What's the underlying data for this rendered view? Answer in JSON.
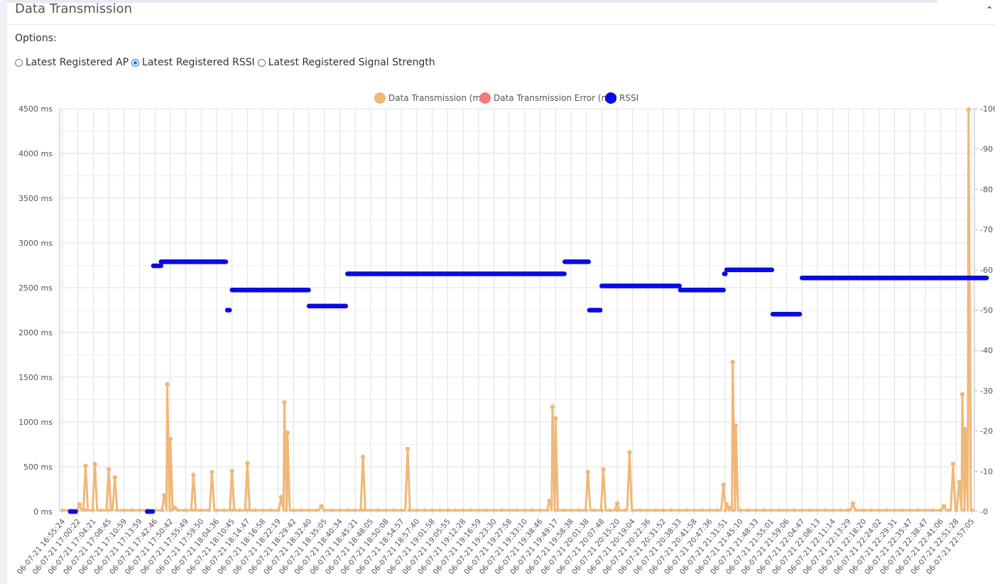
{
  "panel": {
    "title": "Data Transmission",
    "collapse_icon": "chevron-icon",
    "options_label": "Options:",
    "radios": [
      {
        "label": "Latest Registered AP",
        "checked": false
      },
      {
        "label": "Latest Registered RSSI",
        "checked": true
      },
      {
        "label": "Latest Registered Signal Strength",
        "checked": false
      }
    ]
  },
  "colors": {
    "transmission": "#efb878",
    "error": "#f07a7a",
    "rssi": "#0a0ae6",
    "grid": "#e0e0e0",
    "accent": "#1a73e8"
  },
  "chart_data": {
    "type": "line",
    "legend_position": "top-center",
    "grid": true,
    "series": [
      {
        "name": "Data Transmission (ms)",
        "axis": "left",
        "style": "line"
      },
      {
        "name": "Data Transmission Error (ms)",
        "axis": "left",
        "style": "line"
      },
      {
        "name": "RSSI",
        "axis": "right",
        "style": "dots"
      }
    ],
    "y_left": {
      "min": 0,
      "max": 4500,
      "ticks": [
        "0 ms",
        "500 ms",
        "1000 ms",
        "1500 ms",
        "2000 ms",
        "2500 ms",
        "3000 ms",
        "3500 ms",
        "4000 ms",
        "4500 ms"
      ]
    },
    "y_right": {
      "min": 0,
      "max": -100,
      "ticks": [
        "-0",
        "-10",
        "-20",
        "-30",
        "-40",
        "-50",
        "-60",
        "-70",
        "-80",
        "-90",
        "-100"
      ]
    },
    "x_labels": [
      "06-07-21 16:55:24",
      "06-07-21 17:00:22",
      "06-07-21 17:04:21",
      "06-07-21 17:08:45",
      "06-07-21 17:10:59",
      "06-07-21 17:13:59",
      "06-07-21 17:42:46",
      "06-07-21 17:50:42",
      "06-07-21 17:55:49",
      "06-07-21 17:59:50",
      "06-07-21 18:04:36",
      "06-07-21 18:10:45",
      "06-07-21 18:14:47",
      "06-07-21 18:16:58",
      "06-07-21 18:22:19",
      "06-07-21 18:29:42",
      "06-07-21 18:32:40",
      "06-07-21 18:35:05",
      "06-07-21 18:40:34",
      "06-07-21 18:45:21",
      "06-07-21 18:48:05",
      "06-07-21 18:50:08",
      "06-07-21 18:54:57",
      "06-07-21 18:57:40",
      "06-07-21 19:01:58",
      "06-07-21 19:05:55",
      "06-07-21 19:12:28",
      "06-07-21 19:16:59",
      "06-07-21 19:23:30",
      "06-07-21 19:27:58",
      "06-07-21 19:33:10",
      "06-07-21 19:38:46",
      "06-07-21 19:49:17",
      "06-07-21 19:58:38",
      "06-07-21 20:01:38",
      "06-07-21 20:07:48",
      "06-07-21 20:15:20",
      "06-07-21 20:19:04",
      "06-07-21 20:22:36",
      "06-07-21 20:31:52",
      "06-07-21 20:38:33",
      "06-07-21 20:41:58",
      "06-07-21 20:47:36",
      "06-07-21 21:31:51",
      "06-07-21 21:45:10",
      "06-07-21 21:48:33",
      "06-07-21 21:55:01",
      "06-07-21 21:59:06",
      "06-07-21 22:04:47",
      "06-07-21 22:08:13",
      "06-07-21 22:11:14",
      "06-07-21 22:13:29",
      "06-07-21 22:18:20",
      "06-07-21 22:24:02",
      "06-07-21 22:29:31",
      "06-07-21 22:35:47",
      "06-07-21 22:38:47",
      "06-07-21 22:41:06",
      "06-07-21 22:51:28",
      "06-07-21 22:57:05"
    ],
    "transmission_baseline_ms": 15,
    "transmission_spikes": [
      [
        1.1,
        80
      ],
      [
        1.5,
        510
      ],
      [
        2.1,
        530
      ],
      [
        3.0,
        470
      ],
      [
        3.4,
        380
      ],
      [
        6.6,
        180
      ],
      [
        6.8,
        1420
      ],
      [
        7.0,
        810
      ],
      [
        7.3,
        40
      ],
      [
        8.5,
        410
      ],
      [
        9.7,
        440
      ],
      [
        11.0,
        450
      ],
      [
        12.0,
        540
      ],
      [
        14.2,
        160
      ],
      [
        14.4,
        1220
      ],
      [
        14.6,
        880
      ],
      [
        16.8,
        60
      ],
      [
        19.5,
        610
      ],
      [
        22.4,
        700
      ],
      [
        31.6,
        120
      ],
      [
        31.8,
        1170
      ],
      [
        32.0,
        1040
      ],
      [
        34.1,
        440
      ],
      [
        35.1,
        470
      ],
      [
        36.0,
        90
      ],
      [
        36.8,
        660
      ],
      [
        42.9,
        300
      ],
      [
        43.1,
        80
      ],
      [
        43.3,
        40
      ],
      [
        43.5,
        1670
      ],
      [
        43.7,
        960
      ],
      [
        51.3,
        90
      ],
      [
        57.2,
        60
      ],
      [
        57.8,
        530
      ],
      [
        58.2,
        330
      ],
      [
        58.4,
        1310
      ],
      [
        58.6,
        920
      ],
      [
        58.8,
        4490
      ]
    ],
    "rssi_segments": [
      [
        0.5,
        0.9,
        0
      ],
      [
        5.5,
        5.9,
        0
      ],
      [
        5.9,
        6.4,
        -61
      ],
      [
        6.4,
        10.6,
        -62
      ],
      [
        10.7,
        10.9,
        -50
      ],
      [
        11.0,
        16.0,
        -55
      ],
      [
        16.0,
        18.4,
        -51
      ],
      [
        18.5,
        32.6,
        -59
      ],
      [
        32.6,
        34.2,
        -62
      ],
      [
        34.2,
        34.9,
        -50
      ],
      [
        35.0,
        40.1,
        -56
      ],
      [
        40.1,
        42.9,
        -55
      ],
      [
        42.95,
        43.05,
        -59
      ],
      [
        43.1,
        46.1,
        -60
      ],
      [
        46.1,
        47.9,
        -49
      ],
      [
        48.0,
        60.0,
        -58
      ]
    ]
  }
}
